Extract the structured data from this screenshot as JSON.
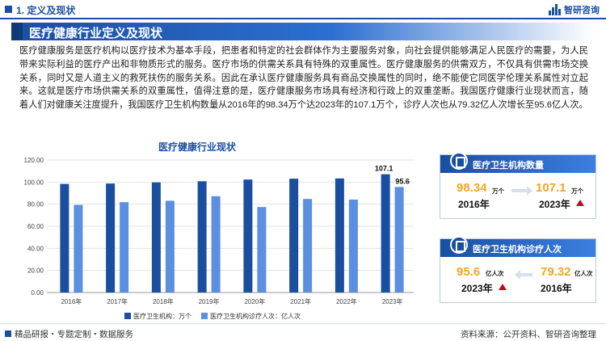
{
  "header": {
    "section": "1. 定义及现状",
    "brand": "智研咨询"
  },
  "title": "医疗健康行业定义及现状",
  "intro": "医疗健康服务是医疗机构以医疗技术为基本手段，把患者和特定的社会群体作为主要服务对象，向社会提供能够满足人民医疗的需要，为人民带来实际利益的医疗产出和非物质形式的服务。医疗市场的供需关系具有特殊的双重属性。医疗健康服务的供需双方，不仅具有供需市场交换关系，同时又是人道主义的救死扶伤的服务关系。因此在承认医疗健康服务具有商品交换属性的同时，绝不能使它同医学伦理关系属性对立起来。这就是医疗市场供需关系的双重属性，值得注意的是，医疗健康服务市场具有经济和行政上的双重垄断。我国医疗健康行业现状而言，随着人们对健康关注度提升，我国医疗卫生机构数量从2016年的98.34万个达2023年的107.1万个，诊疗人次也从79.32亿人次增长至95.6亿人次。",
  "chart_data": {
    "type": "bar",
    "title": "医疗健康行业现状",
    "categories": [
      "2016年",
      "2017年",
      "2018年",
      "2019年",
      "2020年",
      "2021年",
      "2022年",
      "2023年"
    ],
    "series": [
      {
        "name": "医疗卫生机构：万个",
        "values": [
          98.34,
          98.7,
          99.7,
          100.75,
          102.29,
          103.09,
          103.3,
          107.1
        ],
        "color": "#1a4fa0"
      },
      {
        "name": "医疗卫生机构诊疗人次：亿人次",
        "values": [
          79.32,
          81.8,
          83.08,
          87.2,
          77.41,
          84.72,
          84.16,
          95.6
        ],
        "color": "#5b8fe0"
      }
    ],
    "data_labels": [
      "107.1",
      "95.6"
    ],
    "ylim": [
      0,
      120
    ],
    "yticks": [
      "0.00",
      "20.00",
      "40.00",
      "60.00",
      "80.00",
      "100.00",
      "120.00"
    ],
    "grid": true,
    "legend_position": "bottom"
  },
  "panels": [
    {
      "title": "医疗卫生机构数量",
      "left_value": "98.34",
      "left_unit": "万个",
      "left_year": "2016年",
      "right_value": "107.1",
      "right_unit": "万个",
      "right_year": "2023年"
    },
    {
      "title": "医疗卫生机构诊疗人次",
      "left_value": "95.6",
      "left_unit": "亿人次",
      "left_year": "2023年",
      "right_value": "79.32",
      "right_unit": "亿人次",
      "right_year": "2016年"
    }
  ],
  "footer": {
    "left": "精品研报・专题定制・数据服务",
    "right": "资料来源：公开资料、智研咨询整理"
  }
}
